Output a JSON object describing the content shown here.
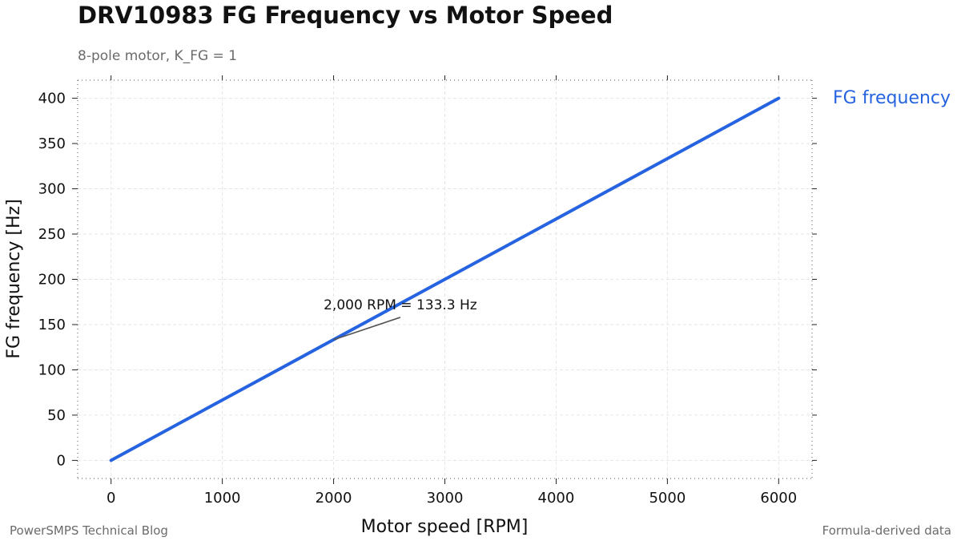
{
  "chart_data": {
    "type": "line",
    "title": "DRV10983 FG Frequency vs Motor Speed",
    "subtitle": "8-pole motor, K_FG = 1",
    "xlabel": "Motor speed [RPM]",
    "ylabel": "FG frequency [Hz]",
    "xlim": [
      -300,
      6300
    ],
    "ylim": [
      -20,
      420
    ],
    "xticks": [
      0,
      1000,
      2000,
      3000,
      4000,
      5000,
      6000
    ],
    "yticks": [
      0,
      50,
      100,
      150,
      200,
      250,
      300,
      350,
      400
    ],
    "grid": true,
    "legend_placement": "right (direct label at line end)",
    "series": [
      {
        "name": "FG frequency",
        "color": "#2563e0",
        "x": [
          0,
          1000,
          2000,
          3000,
          4000,
          5000,
          6000
        ],
        "y": [
          0,
          66.7,
          133.3,
          200,
          266.7,
          333.3,
          400
        ]
      }
    ],
    "annotations": [
      {
        "text": "2,000 RPM = 133.3 Hz",
        "x": 2000,
        "y": 133.3,
        "text_x": 2600,
        "text_y": 158
      }
    ]
  },
  "footer": {
    "left": "PowerSMPS Technical Blog",
    "right": "Formula-derived data"
  }
}
